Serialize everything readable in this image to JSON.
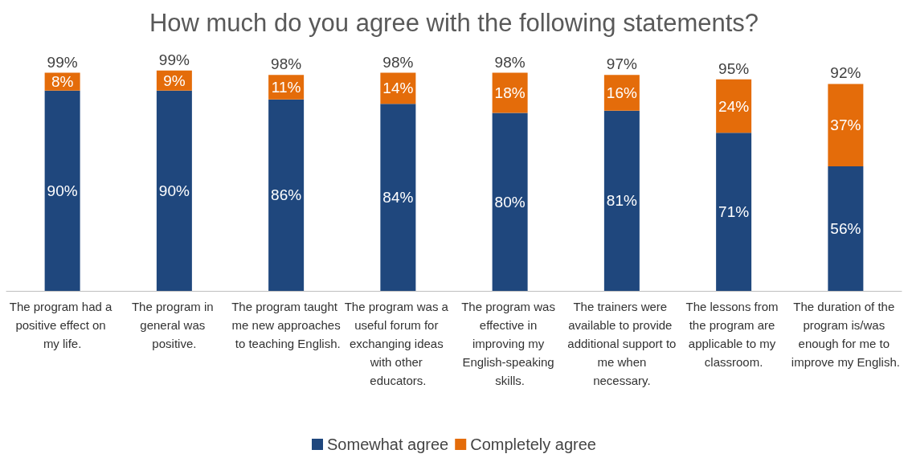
{
  "chart_data": {
    "type": "bar",
    "title": "How much do you agree with the following statements?",
    "categories": [
      "The program had a positive effect on my life.",
      "The program in general was positive.",
      "The program taught me new approaches to teaching English.",
      "The program was a useful forum for exchanging ideas with other educators.",
      "The program was effective in improving my English-speaking skills.",
      "The trainers were available to provide additional support to me when necessary.",
      "The lessons from the program are applicable to my classroom.",
      "The duration of the program is/was enough for me to improve my English."
    ],
    "stacked": true,
    "legend": "bottom",
    "series": [
      {
        "name": "Somewhat agree",
        "color": "#1f477d",
        "values": [
          90,
          90,
          86,
          84,
          80,
          81,
          71,
          56
        ],
        "value_labels": [
          "90%",
          "90%",
          "86%",
          "84%",
          "80%",
          "81%",
          "71%",
          "56%"
        ]
      },
      {
        "name": "Completely agree",
        "color": "#e46c0a",
        "values": [
          8,
          9,
          11,
          14,
          18,
          16,
          24,
          37
        ],
        "value_labels": [
          "8%",
          "9%",
          "11%",
          "14%",
          "18%",
          "16%",
          "24%",
          "37%"
        ]
      }
    ],
    "totals": [
      "99%",
      "99%",
      "98%",
      "98%",
      "98%",
      "97%",
      "95%",
      "92%"
    ]
  }
}
